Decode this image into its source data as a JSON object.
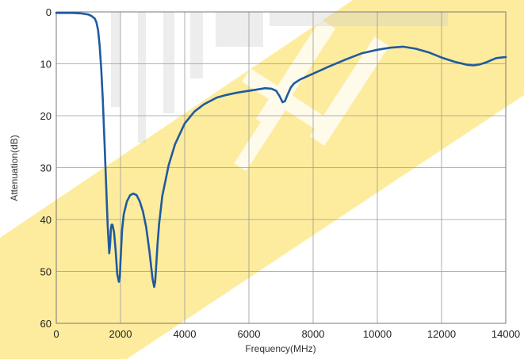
{
  "chart_data": {
    "type": "line",
    "title": "",
    "xlabel": "Frequency(MHz)",
    "ylabel": "Attenuation(dB)",
    "xlim": [
      0,
      14000
    ],
    "ylim": [
      0,
      60
    ],
    "y_inverted": true,
    "grid": true,
    "x_ticks": [
      0,
      2000,
      4000,
      6000,
      8000,
      10000,
      12000,
      14000
    ],
    "x_tick_labels": [
      "0",
      "2000",
      "4000",
      "6000",
      "8000",
      "10000",
      "12000",
      "14000"
    ],
    "y_ticks": [
      0,
      10,
      20,
      30,
      40,
      50,
      60
    ],
    "y_tick_labels": [
      "0",
      "10",
      "20",
      "30",
      "40",
      "50",
      "60"
    ],
    "series": [
      {
        "color": "#1f5aa0",
        "x": [
          0,
          200,
          500,
          800,
          1000,
          1100,
          1200,
          1250,
          1300,
          1350,
          1400,
          1450,
          1500,
          1550,
          1600,
          1650,
          1680,
          1700,
          1720,
          1750,
          1800,
          1850,
          1900,
          1950,
          1980,
          2000,
          2050,
          2100,
          2200,
          2300,
          2400,
          2500,
          2600,
          2700,
          2800,
          2900,
          3000,
          3050,
          3080,
          3100,
          3150,
          3200,
          3300,
          3500,
          3700,
          4000,
          4300,
          4600,
          5000,
          5300,
          5600,
          5900,
          6200,
          6500,
          6700,
          6850,
          6950,
          7050,
          7120,
          7200,
          7300,
          7400,
          7600,
          8000,
          8500,
          9000,
          9500,
          10000,
          10400,
          10800,
          11200,
          11600,
          12000,
          12400,
          12800,
          13000,
          13200,
          13400,
          13700,
          14000
        ],
        "y": [
          0.2,
          0.2,
          0.2,
          0.3,
          0.5,
          0.8,
          1.3,
          2.0,
          3.5,
          6.5,
          11.0,
          17.0,
          25.0,
          33.0,
          41.0,
          46.5,
          44.5,
          42.0,
          41.0,
          41.0,
          42.5,
          46.0,
          50.5,
          52.0,
          51.0,
          48.0,
          42.0,
          39.0,
          36.5,
          35.3,
          35.0,
          35.3,
          36.5,
          38.5,
          41.5,
          46.0,
          51.5,
          53.0,
          52.0,
          50.0,
          45.0,
          41.0,
          35.5,
          29.5,
          25.5,
          21.5,
          19.2,
          17.8,
          16.5,
          16.0,
          15.6,
          15.3,
          15.0,
          14.7,
          14.8,
          15.2,
          16.2,
          17.4,
          17.2,
          16.0,
          14.6,
          13.8,
          13.0,
          11.9,
          10.5,
          9.2,
          8.0,
          7.3,
          6.9,
          6.7,
          7.1,
          7.8,
          8.8,
          9.6,
          10.2,
          10.3,
          10.1,
          9.7,
          8.9,
          8.7
        ]
      }
    ]
  },
  "watermark": {
    "band_color": "#fde98c",
    "glyph_color": "#ffffff"
  }
}
